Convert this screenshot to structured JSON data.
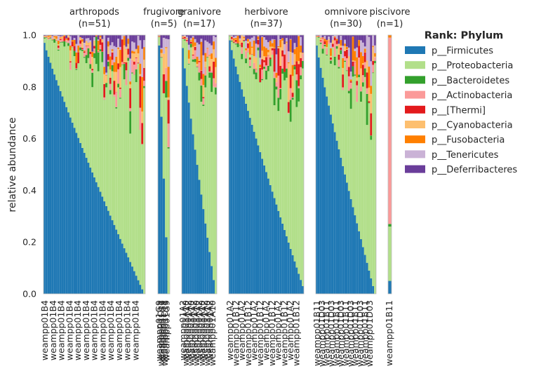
{
  "chart_data": {
    "type": "bar",
    "stacked": true,
    "ylabel": "relative abundance",
    "ylim": [
      0,
      1
    ],
    "yticks": [
      "0.0",
      "0.2",
      "0.4",
      "0.6",
      "0.8",
      "1.0"
    ],
    "legend_title": "Rank: Phylum",
    "legend_position": "right",
    "series": [
      {
        "name": "p__Firmicutes",
        "color": "#1f78b4"
      },
      {
        "name": "p__Proteobacteria",
        "color": "#b2df8a"
      },
      {
        "name": "p__Bacteroidetes",
        "color": "#33a02c"
      },
      {
        "name": "p__Actinobacteria",
        "color": "#fb9a99"
      },
      {
        "name": "p__[Thermi]",
        "color": "#e31a1c"
      },
      {
        "name": "p__Cyanobacteria",
        "color": "#fdbf6f"
      },
      {
        "name": "p__Fusobacteria",
        "color": "#ff7f00"
      },
      {
        "name": "p__Tenericutes",
        "color": "#cab2d6"
      },
      {
        "name": "p__Deferribacteres",
        "color": "#6a3d9a"
      }
    ],
    "panels": [
      {
        "group": "arthropods",
        "count": "(n=51)",
        "sample_count": 51,
        "firmicutes_range": [
          0.97,
          0.0
        ],
        "sample_labels": [
          "weampp01B4"
        ]
      },
      {
        "group": "frugivore",
        "count": "(n=5)",
        "sample_count": 5,
        "firmicutes_range": [
          0.96,
          0.0
        ],
        "sample_labels": [
          "weampp01G9",
          "weampp01C11"
        ]
      },
      {
        "group": "granivore",
        "count": "(n=17)",
        "sample_count": 17,
        "firmicutes_range": [
          0.95,
          0.0
        ],
        "sample_labels": [
          "weampp01A2",
          "weampp01A10"
        ]
      },
      {
        "group": "herbivore",
        "count": "(n=37)",
        "sample_count": 37,
        "firmicutes_range": [
          0.98,
          0.03
        ],
        "sample_labels": [
          "weampp01A2",
          "weampp01B12"
        ]
      },
      {
        "group": "omnivore",
        "count": "(n=30)",
        "sample_count": 30,
        "firmicutes_range": [
          0.96,
          0.0
        ],
        "sample_labels": [
          "weampp01B11",
          "weampp01D03"
        ]
      },
      {
        "group": "piscivore",
        "count": "(n=1)",
        "sample_count": 1,
        "firmicutes_range": [
          0.05,
          0.05
        ],
        "sample_labels": [
          "weampp01B11"
        ]
      }
    ]
  }
}
